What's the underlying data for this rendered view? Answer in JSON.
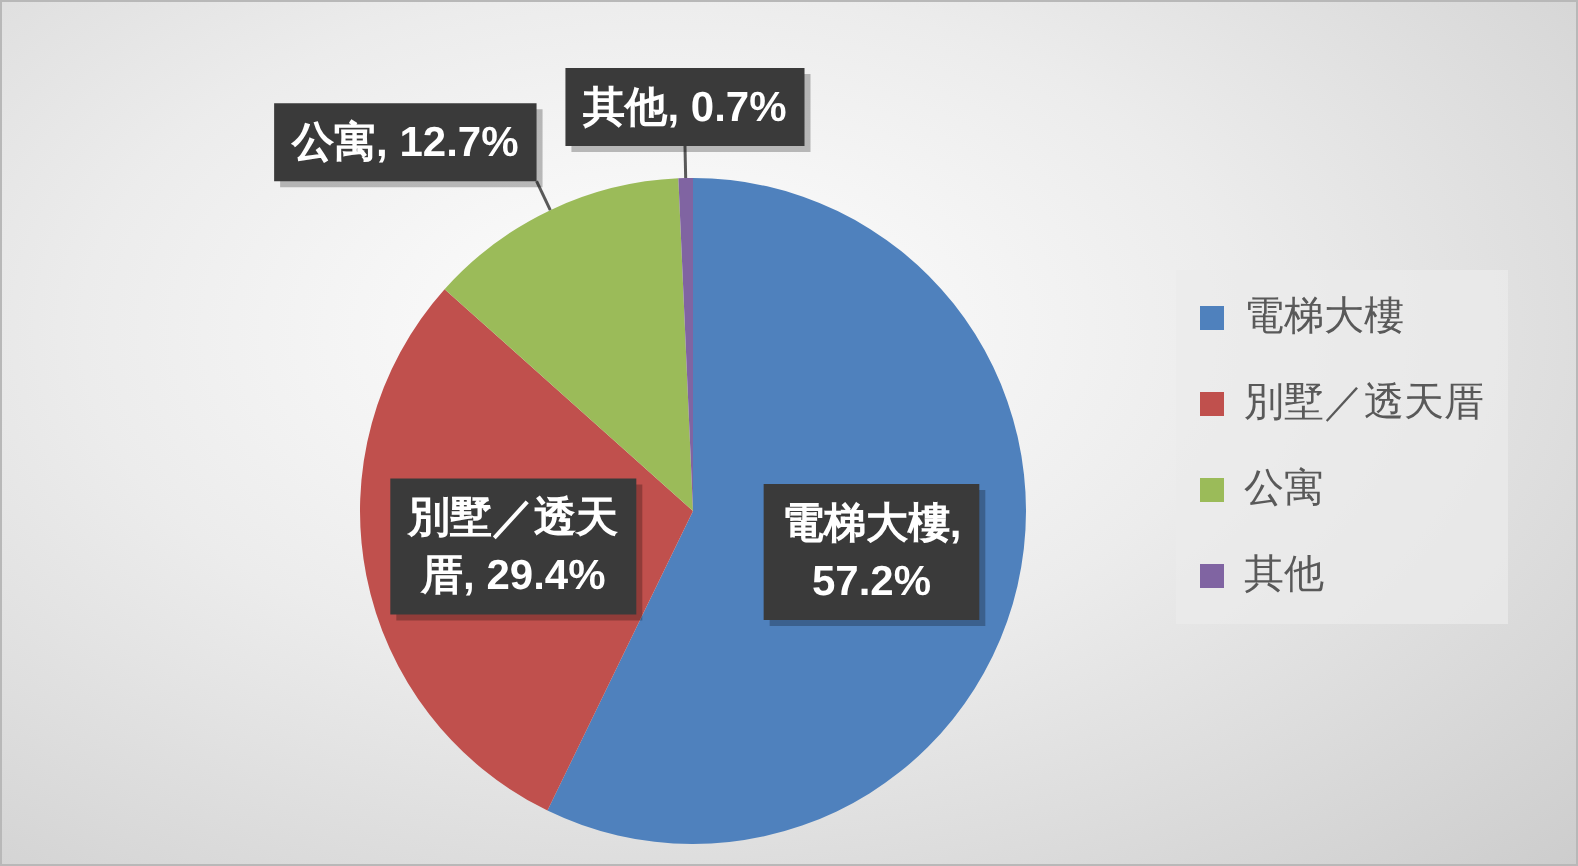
{
  "chart_data": {
    "type": "pie",
    "categories": [
      "電梯大樓",
      "別墅／透天厝",
      "公寓",
      "其他"
    ],
    "values": [
      57.2,
      29.4,
      12.7,
      0.7
    ],
    "colors": [
      "#4f81bd",
      "#c0504d",
      "#9bbb59",
      "#8064a2"
    ],
    "value_labels": [
      "電梯大樓, 57.2%",
      "別墅／透天厝, 29.4%",
      "公寓, 12.7%",
      "其他, 0.7%"
    ],
    "legend": "right"
  }
}
